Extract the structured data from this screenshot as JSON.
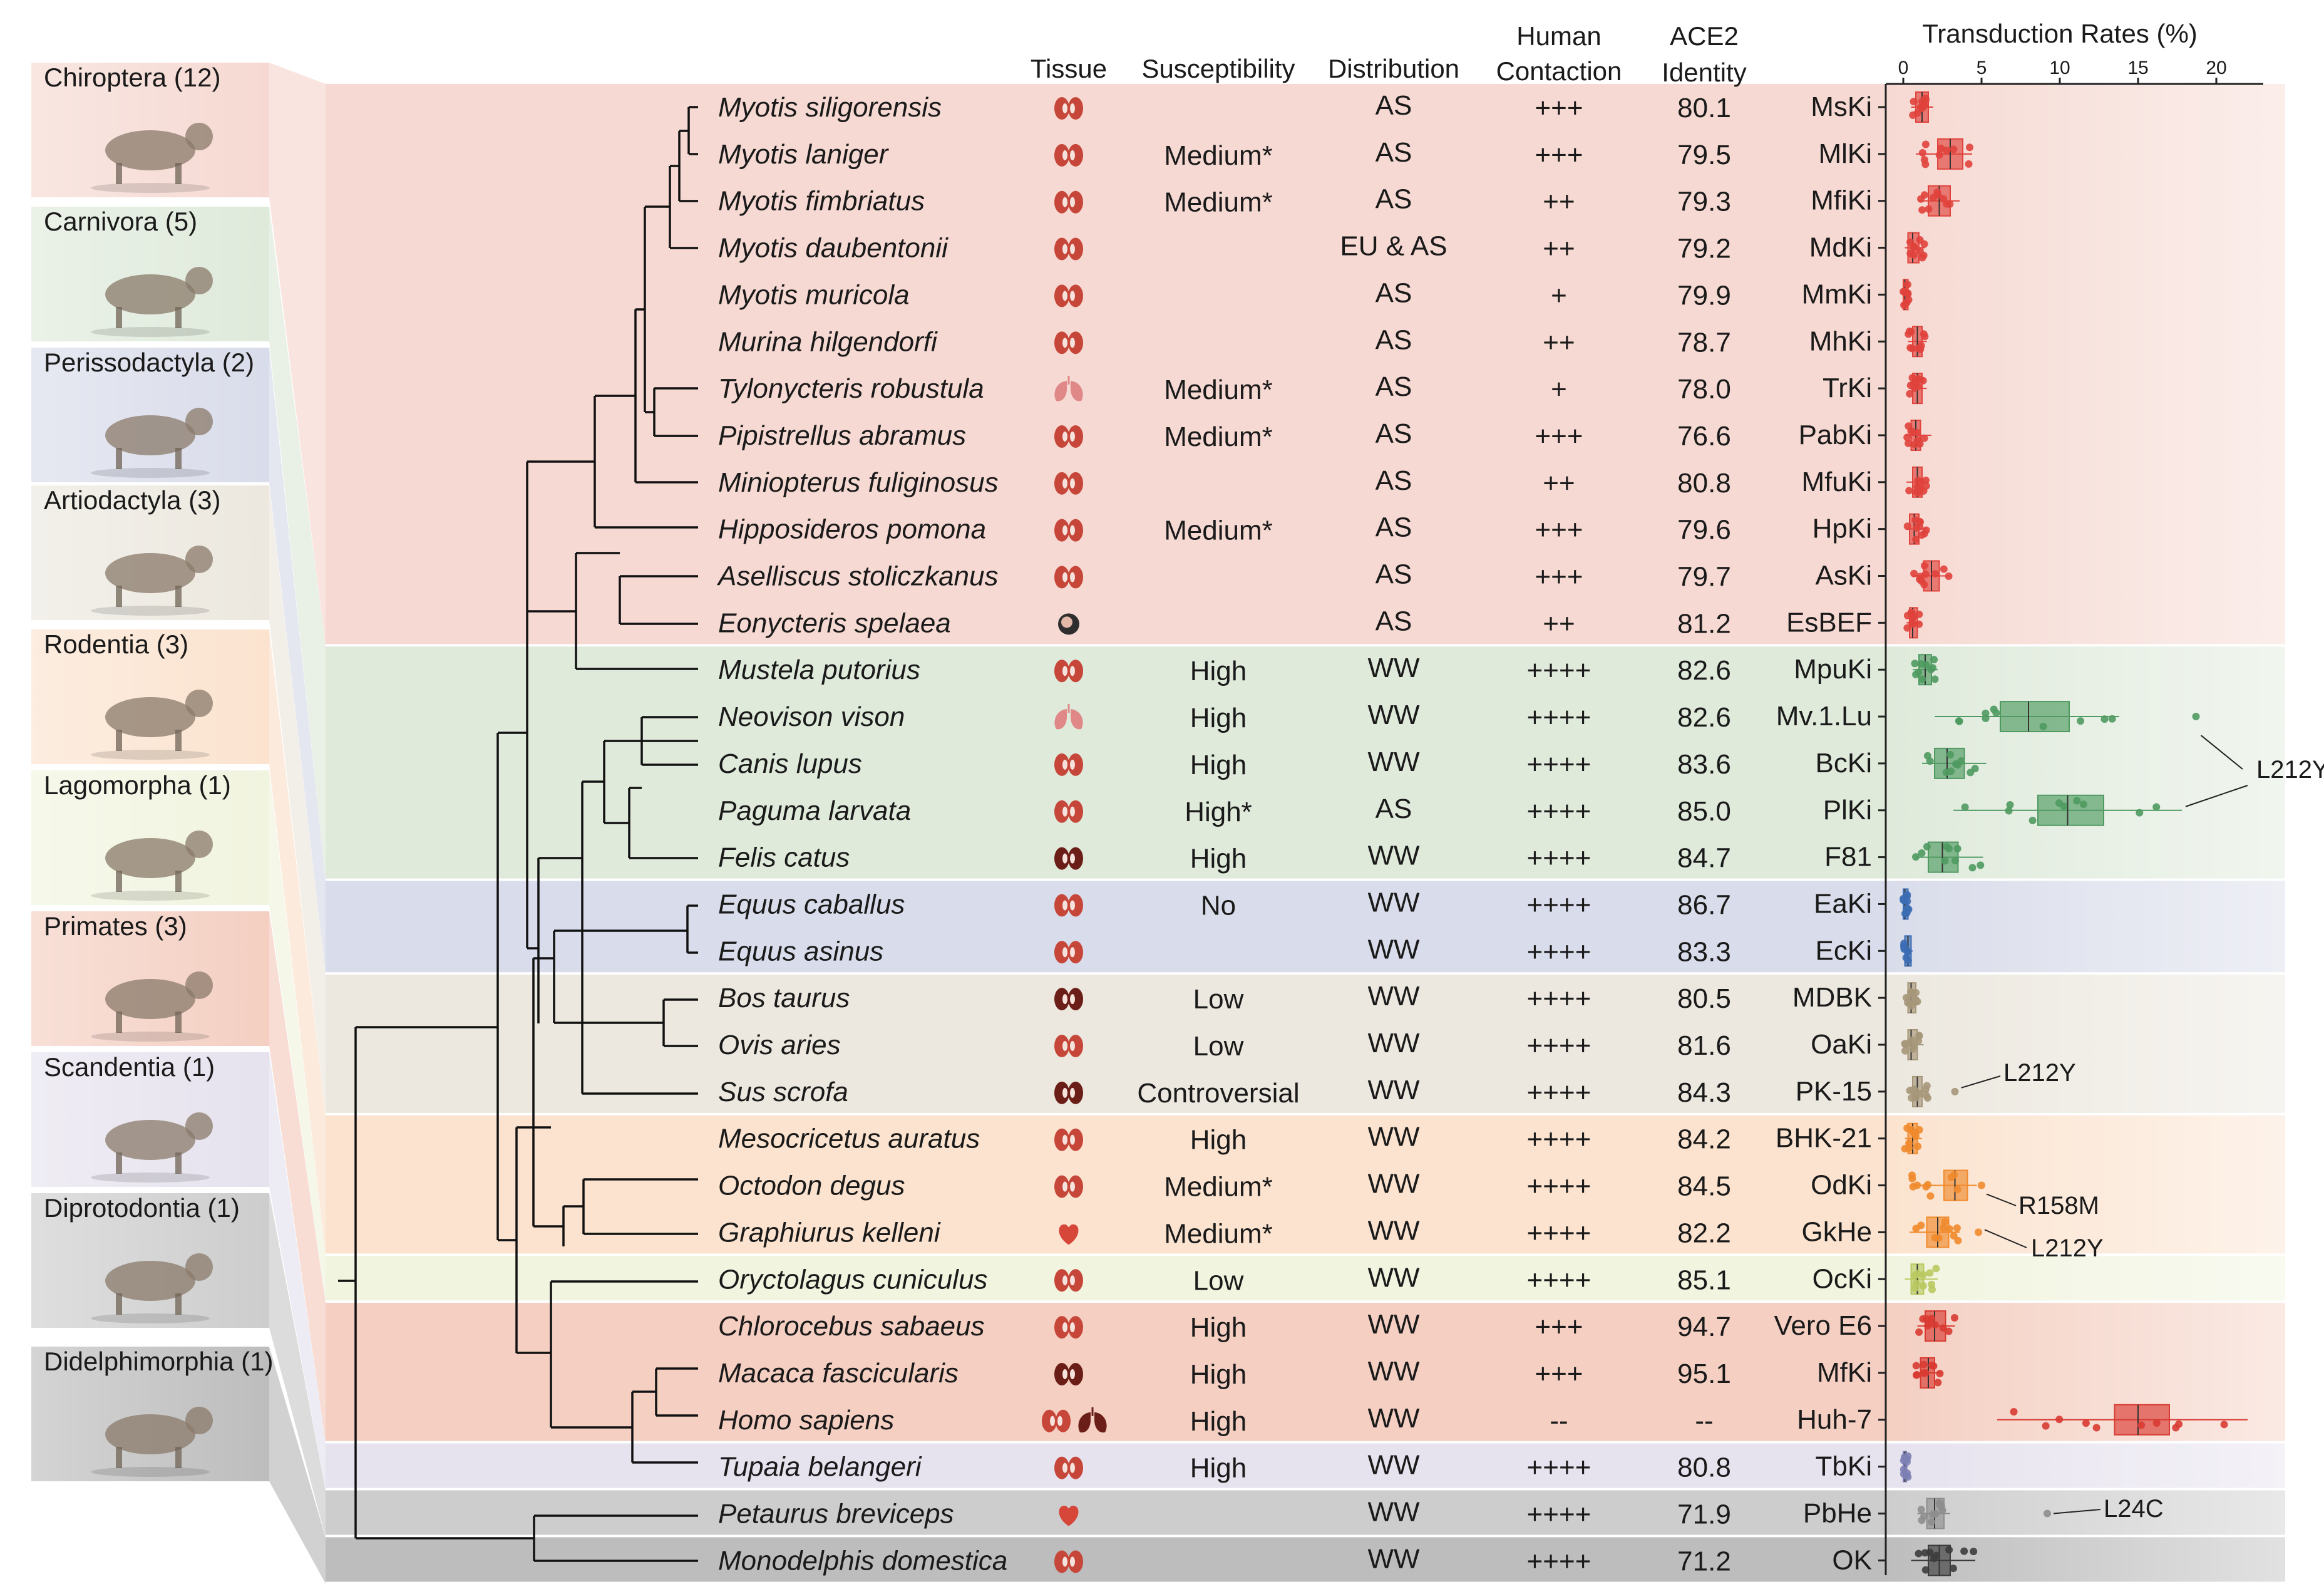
{
  "headers": {
    "tissue": "Tissue",
    "susceptibility": "Susceptibility",
    "distribution": "Distribution",
    "human_contaction": [
      "Human",
      "Contaction"
    ],
    "ace2_identity": [
      "ACE2",
      "Identity"
    ],
    "transduction": "Transduction Rates (%)"
  },
  "orders": [
    {
      "label": "Chiroptera (12)",
      "color": "#f6d9d2"
    },
    {
      "label": "Carnivora (5)",
      "color": "#dfeadb"
    },
    {
      "label": "Perissodactyla (2)",
      "color": "#d9dcea"
    },
    {
      "label": "Artiodactyla (3)",
      "color": "#ece8df"
    },
    {
      "label": "Rodentia (3)",
      "color": "#fbe3cf"
    },
    {
      "label": "Lagomorpha (1)",
      "color": "#f1f4df"
    },
    {
      "label": "Primates (3)",
      "color": "#f4cfc2"
    },
    {
      "label": "Scandentia (1)",
      "color": "#e6e2ee"
    },
    {
      "label": "Diprotodontia (1)",
      "color": "#cdcdcd"
    },
    {
      "label": "Didelphimorphia (1)",
      "color": "#bdbdbd"
    }
  ],
  "species": [
    {
      "name": "Myotis siligorensis",
      "tissue": "kidney",
      "susceptibility": "",
      "distribution": "AS",
      "contaction": "+++",
      "identity": "80.1",
      "cell": "MsKi",
      "group": 0,
      "median": 1.2
    },
    {
      "name": "Myotis laniger",
      "tissue": "kidney",
      "susceptibility": "Medium*",
      "distribution": "AS",
      "contaction": "+++",
      "identity": "79.5",
      "cell": "MlKi",
      "group": 0,
      "median": 3.0
    },
    {
      "name": "Myotis fimbriatus",
      "tissue": "kidney",
      "susceptibility": "Medium*",
      "distribution": "AS",
      "contaction": "++",
      "identity": "79.3",
      "cell": "MfiKi",
      "group": 0,
      "median": 2.3
    },
    {
      "name": "Myotis daubentonii",
      "tissue": "kidney",
      "susceptibility": "",
      "distribution": "EU & AS",
      "contaction": "++",
      "identity": "79.2",
      "cell": "MdKi",
      "group": 0,
      "median": 0.6
    },
    {
      "name": "Myotis muricola",
      "tissue": "kidney",
      "susceptibility": "",
      "distribution": "AS",
      "contaction": "+",
      "identity": "79.9",
      "cell": "MmKi",
      "group": 0,
      "median": 0.1
    },
    {
      "name": "Murina hilgendorfi",
      "tissue": "kidney",
      "susceptibility": "",
      "distribution": "AS",
      "contaction": "++",
      "identity": "78.7",
      "cell": "MhKi",
      "group": 0,
      "median": 0.9
    },
    {
      "name": "Tylonycteris robustula",
      "tissue": "lung",
      "susceptibility": "Medium*",
      "distribution": "AS",
      "contaction": "+",
      "identity": "78.0",
      "cell": "TrKi",
      "group": 0,
      "median": 0.9
    },
    {
      "name": "Pipistrellus abramus",
      "tissue": "kidney",
      "susceptibility": "Medium*",
      "distribution": "AS",
      "contaction": "+++",
      "identity": "76.6",
      "cell": "PabKi",
      "group": 0,
      "median": 0.8
    },
    {
      "name": "Miniopterus fuliginosus",
      "tissue": "kidney",
      "susceptibility": "",
      "distribution": "AS",
      "contaction": "++",
      "identity": "80.8",
      "cell": "MfuKi",
      "group": 0,
      "median": 0.9
    },
    {
      "name": "Hipposideros pomona",
      "tissue": "kidney",
      "susceptibility": "Medium*",
      "distribution": "AS",
      "contaction": "+++",
      "identity": "79.6",
      "cell": "HpKi",
      "group": 0,
      "median": 0.7
    },
    {
      "name": "Aselliscus stoliczkanus",
      "tissue": "kidney",
      "susceptibility": "",
      "distribution": "AS",
      "contaction": "+++",
      "identity": "79.7",
      "cell": "AsKi",
      "group": 0,
      "median": 1.8
    },
    {
      "name": "Eonycteris spelaea",
      "tissue": "embryo",
      "susceptibility": "",
      "distribution": "AS",
      "contaction": "++",
      "identity": "81.2",
      "cell": "EsBEF",
      "group": 0,
      "median": 0.6
    },
    {
      "name": "Mustela putorius",
      "tissue": "kidney",
      "susceptibility": "High",
      "distribution": "WW",
      "contaction": "++++",
      "identity": "82.6",
      "cell": "MpuKi",
      "group": 1,
      "median": 1.4
    },
    {
      "name": "Neovison vison",
      "tissue": "lung",
      "susceptibility": "High",
      "distribution": "WW",
      "contaction": "++++",
      "identity": "82.6",
      "cell": "Mv.1.Lu",
      "group": 1,
      "median": 8.0
    },
    {
      "name": "Canis lupus",
      "tissue": "kidney",
      "susceptibility": "High",
      "distribution": "WW",
      "contaction": "++++",
      "identity": "83.6",
      "cell": "BcKi",
      "group": 1,
      "median": 2.8
    },
    {
      "name": "Paguma  larvata",
      "tissue": "kidney",
      "susceptibility": "High*",
      "distribution": "AS",
      "contaction": "++++",
      "identity": "85.0",
      "cell": "PlKi",
      "group": 1,
      "median": 10.5
    },
    {
      "name": "Felis catus",
      "tissue": "kidney-dark",
      "susceptibility": "High",
      "distribution": "WW",
      "contaction": "++++",
      "identity": "84.7",
      "cell": "F81",
      "group": 1,
      "median": 2.5
    },
    {
      "name": "Equus caballus",
      "tissue": "kidney",
      "susceptibility": "No",
      "distribution": "WW",
      "contaction": "++++",
      "identity": "86.7",
      "cell": "EaKi",
      "group": 2,
      "median": 0.1
    },
    {
      "name": "Equus asinus",
      "tissue": "kidney",
      "susceptibility": "",
      "distribution": "WW",
      "contaction": "++++",
      "identity": "83.3",
      "cell": "EcKi",
      "group": 2,
      "median": 0.3
    },
    {
      "name": "Bos taurus",
      "tissue": "kidney-dark",
      "susceptibility": "Low",
      "distribution": "WW",
      "contaction": "++++",
      "identity": "80.5",
      "cell": "MDBK",
      "group": 3,
      "median": 0.5
    },
    {
      "name": "Ovis aries",
      "tissue": "kidney",
      "susceptibility": "Low",
      "distribution": "WW",
      "contaction": "++++",
      "identity": "81.6",
      "cell": "OaKi",
      "group": 3,
      "median": 0.5
    },
    {
      "name": "Sus scrofa",
      "tissue": "kidney-dark",
      "susceptibility": "Controversial",
      "distribution": "WW",
      "contaction": "++++",
      "identity": "84.3",
      "cell": "PK-15",
      "group": 3,
      "median": 0.9
    },
    {
      "name": "Mesocricetus auratus",
      "tissue": "kidney",
      "susceptibility": "High",
      "distribution": "WW",
      "contaction": "++++",
      "identity": "84.2",
      "cell": "BHK-21",
      "group": 4,
      "median": 0.6
    },
    {
      "name": "Octodon degus",
      "tissue": "kidney",
      "susceptibility": "Medium*",
      "distribution": "WW",
      "contaction": "++++",
      "identity": "84.5",
      "cell": "OdKi",
      "group": 4,
      "median": 3.3
    },
    {
      "name": "Graphiurus kelleni",
      "tissue": "heart",
      "susceptibility": "Medium*",
      "distribution": "WW",
      "contaction": "++++",
      "identity": "82.2",
      "cell": "GkHe",
      "group": 4,
      "median": 2.2
    },
    {
      "name": "Oryctolagus cuniculus",
      "tissue": "kidney",
      "susceptibility": "Low",
      "distribution": "WW",
      "contaction": "++++",
      "identity": "85.1",
      "cell": "OcKi",
      "group": 5,
      "median": 0.9
    },
    {
      "name": "Chlorocebus sabaeus",
      "tissue": "kidney",
      "susceptibility": "High",
      "distribution": "WW",
      "contaction": "+++",
      "identity": "94.7",
      "cell": "Vero E6",
      "group": 6,
      "median": 2.0
    },
    {
      "name": "Macaca fascicularis",
      "tissue": "kidney-dark",
      "susceptibility": "High",
      "distribution": "WW",
      "contaction": "+++",
      "identity": "95.1",
      "cell": "MfKi",
      "group": 6,
      "median": 1.6
    },
    {
      "name": "Homo sapiens",
      "tissue": "kidney+lung",
      "susceptibility": "High",
      "distribution": "WW",
      "contaction": "--",
      "identity": "--",
      "cell": "Huh-7",
      "group": 6,
      "median": 15.0
    },
    {
      "name": "Tupaia belangeri",
      "tissue": "kidney",
      "susceptibility": "High",
      "distribution": "WW",
      "contaction": "++++",
      "identity": "80.8",
      "cell": "TbKi",
      "group": 7,
      "median": 0.1
    },
    {
      "name": "Petaurus breviceps",
      "tissue": "heart",
      "susceptibility": "",
      "distribution": "WW",
      "contaction": "++++",
      "identity": "71.9",
      "cell": "PbHe",
      "group": 8,
      "median": 2.0
    },
    {
      "name": "Monodelphis domestica",
      "tissue": "kidney",
      "susceptibility": "",
      "distribution": "WW",
      "contaction": "++++",
      "identity": "71.2",
      "cell": "OK",
      "group": 9,
      "median": 2.3
    }
  ],
  "chart_data": {
    "type": "box",
    "title": "Transduction Rates (%)",
    "xlabel": "Transduction Rates (%)",
    "xlim": [
      0,
      23
    ],
    "ticks": [
      0,
      5,
      10,
      15,
      20
    ],
    "boxes": [
      {
        "cell": "MsKi",
        "q1": 0.8,
        "median": 1.2,
        "q3": 1.6,
        "min": 0.5,
        "max": 1.9,
        "color": "#e0433c"
      },
      {
        "cell": "MlKi",
        "q1": 2.2,
        "median": 3.0,
        "q3": 3.8,
        "min": 0.8,
        "max": 4.4,
        "color": "#e0433c"
      },
      {
        "cell": "MfiKi",
        "q1": 1.6,
        "median": 2.3,
        "q3": 3.0,
        "min": 1.0,
        "max": 3.6,
        "color": "#e0433c"
      },
      {
        "cell": "MdKi",
        "q1": 0.3,
        "median": 0.6,
        "q3": 1.0,
        "min": 0.1,
        "max": 1.4,
        "color": "#e0433c"
      },
      {
        "cell": "MmKi",
        "q1": 0.0,
        "median": 0.1,
        "q3": 0.3,
        "min": 0.0,
        "max": 0.5,
        "color": "#e0433c"
      },
      {
        "cell": "MhKi",
        "q1": 0.6,
        "median": 0.9,
        "q3": 1.2,
        "min": 0.3,
        "max": 1.5,
        "color": "#e0433c"
      },
      {
        "cell": "TrKi",
        "q1": 0.6,
        "median": 0.9,
        "q3": 1.2,
        "min": 0.4,
        "max": 1.5,
        "color": "#e0433c"
      },
      {
        "cell": "PabKi",
        "q1": 0.5,
        "median": 0.8,
        "q3": 1.1,
        "min": 0.2,
        "max": 1.8,
        "color": "#e0433c"
      },
      {
        "cell": "MfuKi",
        "q1": 0.6,
        "median": 0.9,
        "q3": 1.2,
        "min": 0.2,
        "max": 1.6,
        "color": "#e0433c"
      },
      {
        "cell": "HpKi",
        "q1": 0.4,
        "median": 0.7,
        "q3": 1.0,
        "min": 0.2,
        "max": 1.5,
        "color": "#e0433c"
      },
      {
        "cell": "AsKi",
        "q1": 1.3,
        "median": 1.8,
        "q3": 2.3,
        "min": 0.6,
        "max": 3.0,
        "color": "#e0433c"
      },
      {
        "cell": "EsBEF",
        "q1": 0.4,
        "median": 0.6,
        "q3": 0.9,
        "min": 0.2,
        "max": 1.1,
        "color": "#e0433c"
      },
      {
        "cell": "MpuKi",
        "q1": 1.0,
        "median": 1.4,
        "q3": 1.8,
        "min": 0.6,
        "max": 2.2,
        "color": "#4f9a61"
      },
      {
        "cell": "Mv.1.Lu",
        "q1": 6.2,
        "median": 8.0,
        "q3": 10.6,
        "min": 2.0,
        "max": 13.8,
        "color": "#4f9a61",
        "outlier": 18.7,
        "outlier_label": "L212Y"
      },
      {
        "cell": "BcKi",
        "q1": 2.0,
        "median": 2.8,
        "q3": 3.9,
        "min": 1.2,
        "max": 5.3,
        "color": "#4f9a61"
      },
      {
        "cell": "PlKi",
        "q1": 8.6,
        "median": 10.5,
        "q3": 12.8,
        "min": 3.2,
        "max": 17.8,
        "color": "#4f9a61",
        "outlier_label": "L212Y"
      },
      {
        "cell": "F81",
        "q1": 1.6,
        "median": 2.5,
        "q3": 3.5,
        "min": 0.8,
        "max": 5.1,
        "color": "#4f9a61"
      },
      {
        "cell": "EaKi",
        "q1": 0.0,
        "median": 0.1,
        "q3": 0.3,
        "min": 0.0,
        "max": 0.4,
        "color": "#3c6db3"
      },
      {
        "cell": "EcKi",
        "q1": 0.1,
        "median": 0.3,
        "q3": 0.5,
        "min": 0.0,
        "max": 0.6,
        "color": "#3c6db3"
      },
      {
        "cell": "MDBK",
        "q1": 0.3,
        "median": 0.5,
        "q3": 0.8,
        "min": 0.1,
        "max": 1.0,
        "color": "#a6977a"
      },
      {
        "cell": "OaKi",
        "q1": 0.3,
        "median": 0.5,
        "q3": 0.9,
        "min": 0.1,
        "max": 1.3,
        "color": "#a6977a"
      },
      {
        "cell": "PK-15",
        "q1": 0.6,
        "median": 0.9,
        "q3": 1.2,
        "min": 0.3,
        "max": 1.6,
        "color": "#a6977a",
        "outlier": 3.3,
        "outlier_label": "L212Y"
      },
      {
        "cell": "BHK-21",
        "q1": 0.3,
        "median": 0.6,
        "q3": 0.9,
        "min": 0.1,
        "max": 1.2,
        "color": "#f08a2c"
      },
      {
        "cell": "OdKi",
        "q1": 2.6,
        "median": 3.3,
        "q3": 4.1,
        "min": 0.5,
        "max": 4.7,
        "color": "#f08a2c",
        "outlier": 5.0,
        "outlier_label": "R158M"
      },
      {
        "cell": "GkHe",
        "q1": 1.5,
        "median": 2.2,
        "q3": 2.9,
        "min": 0.4,
        "max": 3.6,
        "color": "#f08a2c",
        "outlier": 4.8,
        "outlier_label": "L212Y"
      },
      {
        "cell": "OcKi",
        "q1": 0.5,
        "median": 0.9,
        "q3": 1.3,
        "min": 0.1,
        "max": 2.2,
        "color": "#b9c95f"
      },
      {
        "cell": "Vero E6",
        "q1": 1.4,
        "median": 2.0,
        "q3": 2.7,
        "min": 0.9,
        "max": 3.3,
        "color": "#d83b32"
      },
      {
        "cell": "MfKi",
        "q1": 1.1,
        "median": 1.6,
        "q3": 2.0,
        "min": 0.7,
        "max": 2.5,
        "color": "#d83b32"
      },
      {
        "cell": "Huh-7",
        "q1": 13.5,
        "median": 15.0,
        "q3": 17.0,
        "min": 6.0,
        "max": 22.0,
        "color": "#d83b32"
      },
      {
        "cell": "TbKi",
        "q1": 0.0,
        "median": 0.1,
        "q3": 0.2,
        "min": 0.0,
        "max": 0.3,
        "color": "#7d7fb4"
      },
      {
        "cell": "PbHe",
        "q1": 1.5,
        "median": 2.0,
        "q3": 2.6,
        "min": 0.9,
        "max": 3.0,
        "color": "#8e8e8e",
        "outlier": 9.2,
        "outlier_label": "L24C"
      },
      {
        "cell": "OK",
        "q1": 1.6,
        "median": 2.3,
        "q3": 3.0,
        "min": 0.5,
        "max": 4.6,
        "color": "#3d3d3d"
      }
    ]
  }
}
